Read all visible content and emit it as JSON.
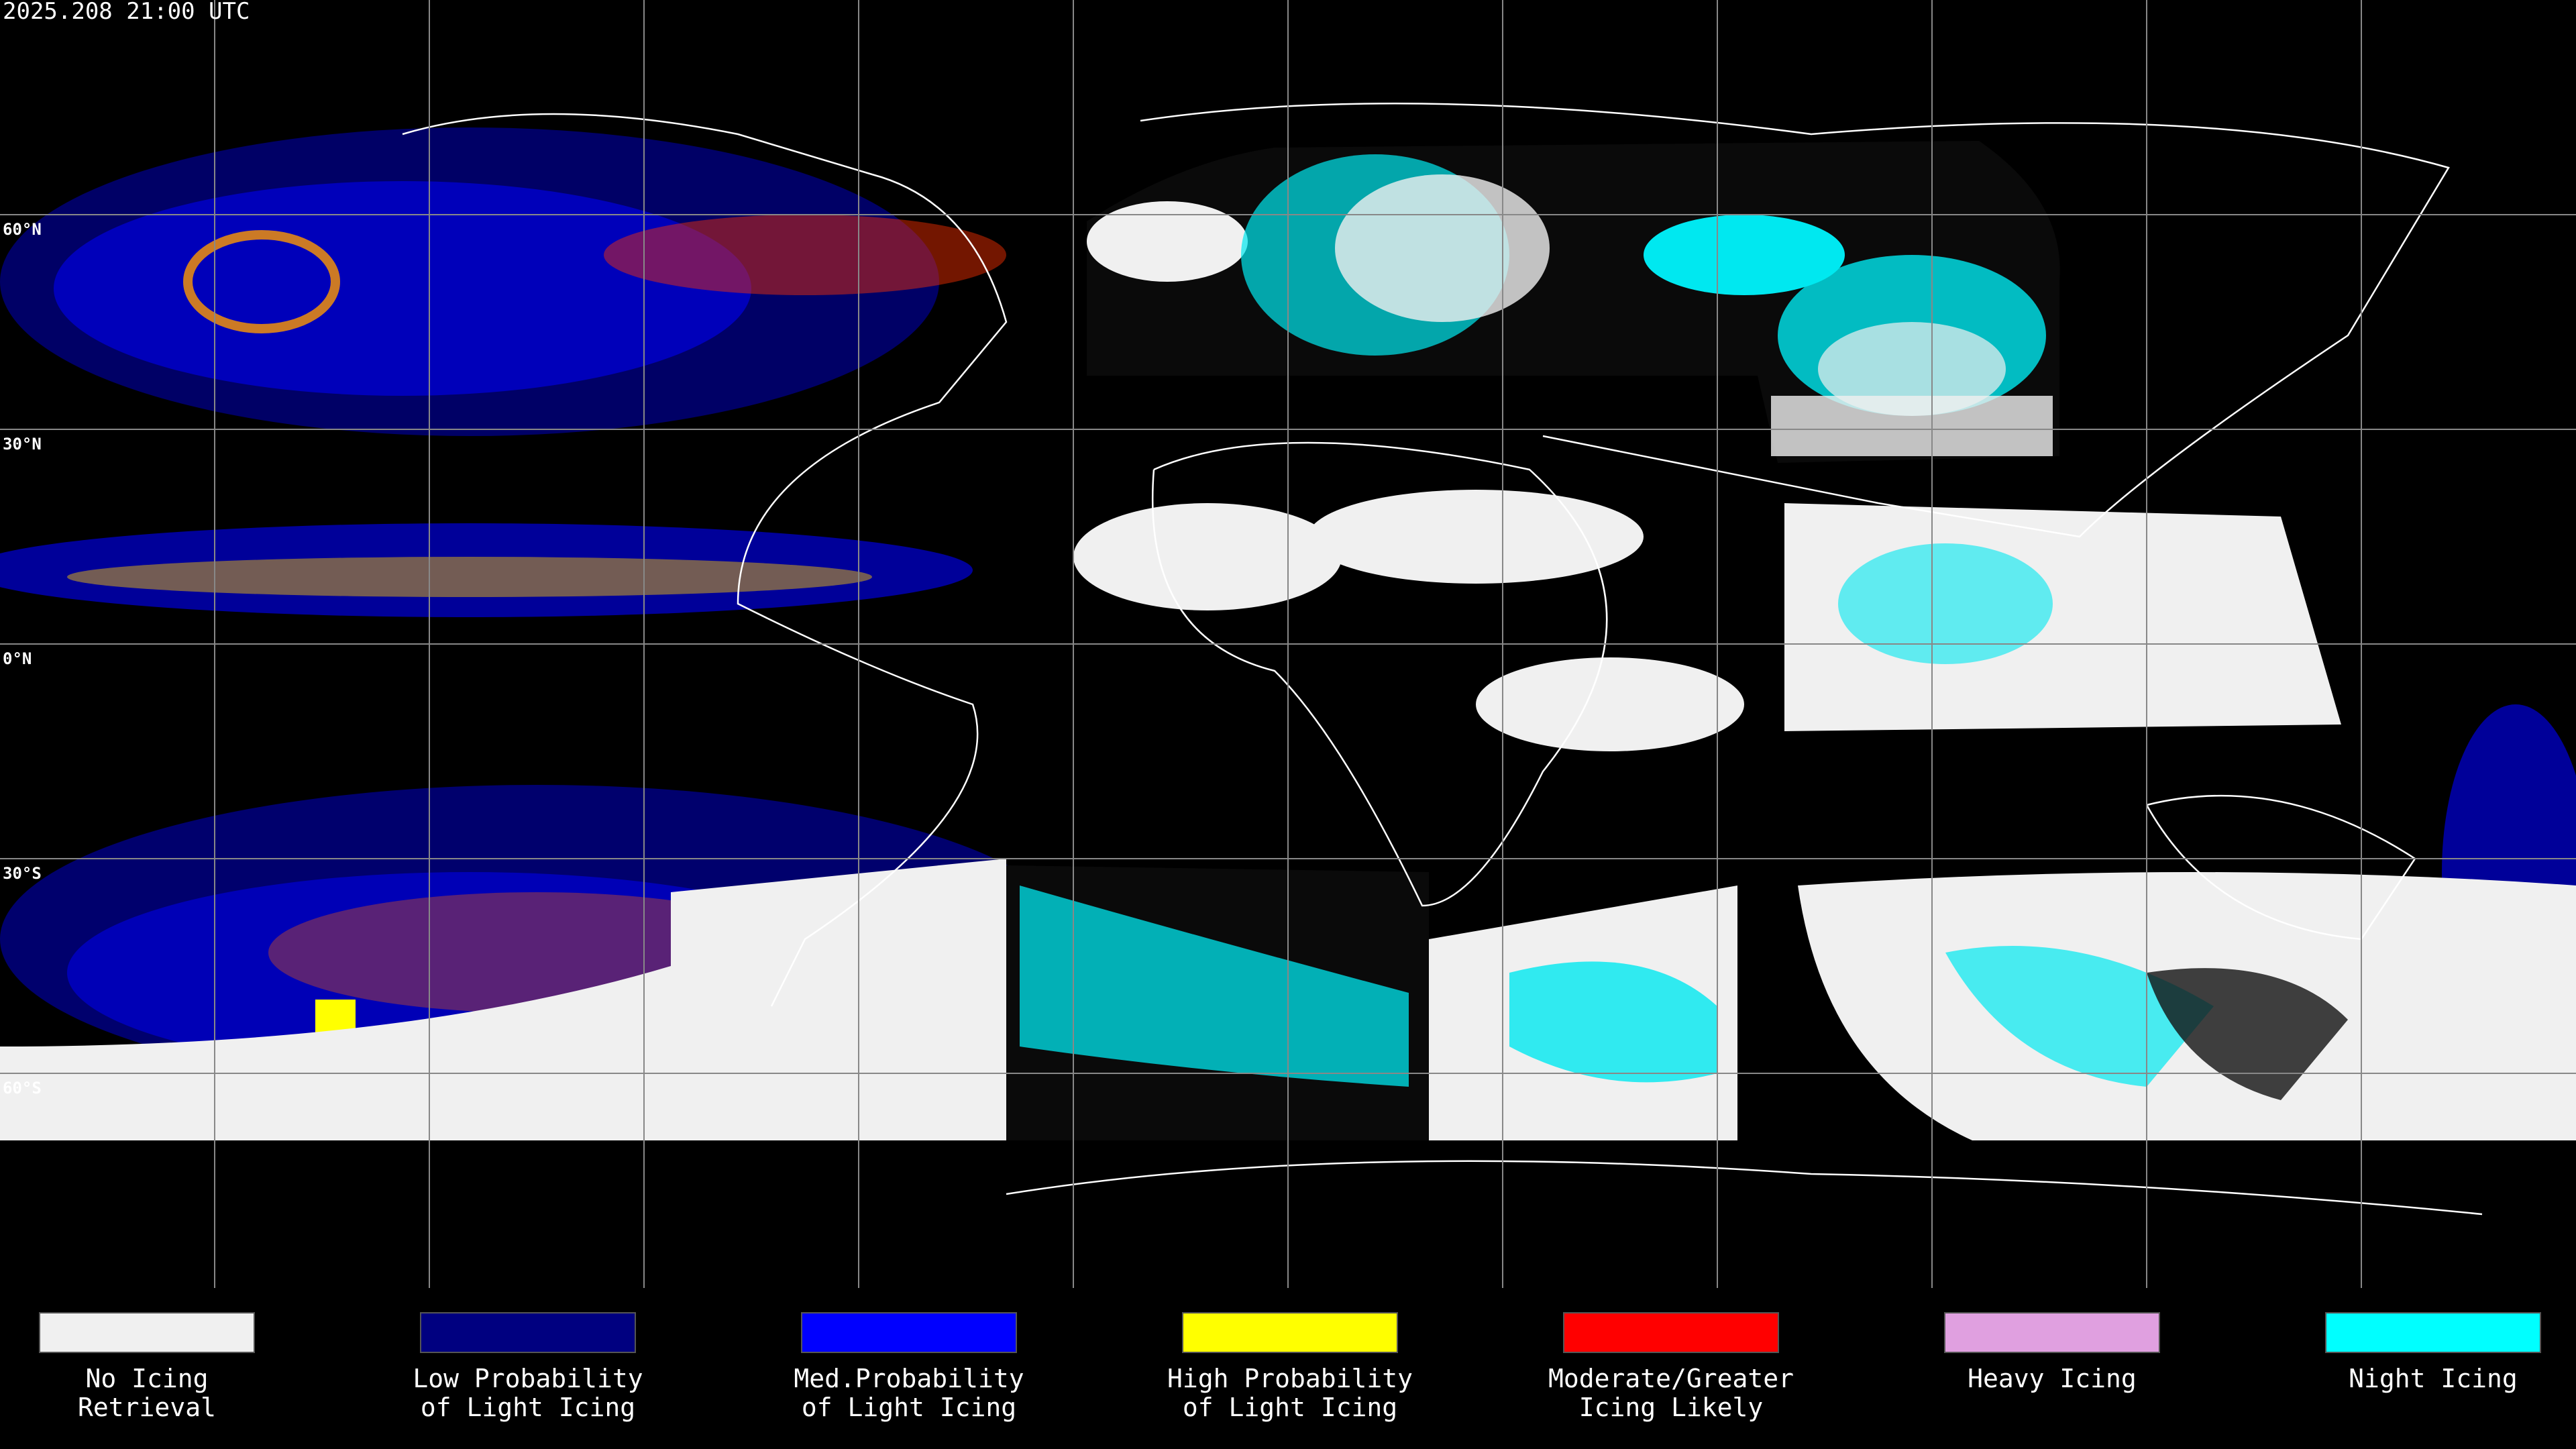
{
  "header": {
    "timestamp": "2025.208 21:00 UTC"
  },
  "lat_labels": [
    "60°N",
    "30°N",
    "0°N",
    "30°S",
    "60°S"
  ],
  "legend": [
    {
      "color": "#f0f0f0",
      "lines": [
        "No Icing",
        "Retrieval"
      ]
    },
    {
      "color": "#000080",
      "lines": [
        "Low Probability",
        "of Light Icing"
      ]
    },
    {
      "color": "#0000ff",
      "lines": [
        "Med.Probability",
        "of Light Icing"
      ]
    },
    {
      "color": "#ffff00",
      "lines": [
        "High Probability",
        "of Light Icing"
      ]
    },
    {
      "color": "#ff0000",
      "lines": [
        "Moderate/Greater",
        "Icing Likely"
      ]
    },
    {
      "color": "#e0a0e0",
      "lines": [
        "Heavy Icing"
      ]
    },
    {
      "color": "#00ffff",
      "lines": [
        "Night Icing"
      ]
    }
  ]
}
